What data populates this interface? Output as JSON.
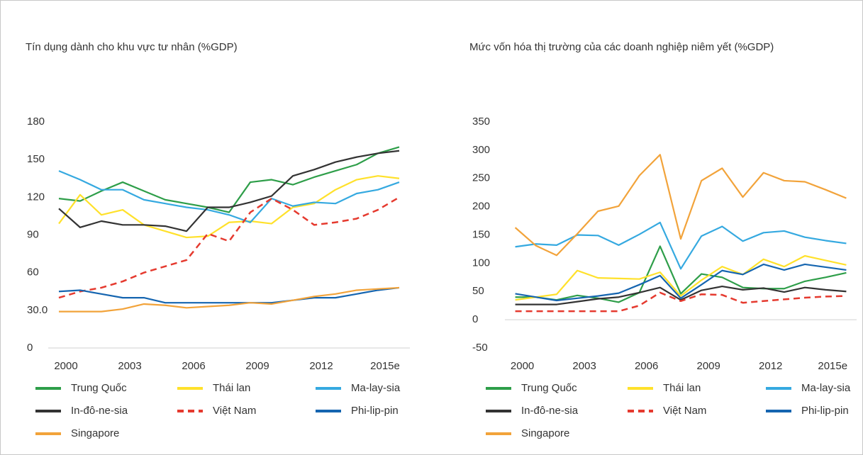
{
  "chart_data": [
    {
      "type": "line",
      "title": "Tín dụng dành cho khu vực tư nhân (%GDP)",
      "legend": "bottom",
      "grid": false,
      "categories": [
        "2000",
        null,
        null,
        "2003",
        null,
        null,
        "2006",
        null,
        null,
        "2009",
        null,
        null,
        "2012",
        null,
        null,
        "2015e",
        null
      ],
      "ylim": [
        0,
        180
      ],
      "yticks": [
        0,
        {
          "value": 30,
          "label": "30.0"
        },
        60,
        90,
        120,
        150,
        180
      ],
      "series": [
        {
          "name": "Trung Quốc",
          "color": "#2e9e49",
          "values": [
            119,
            117,
            125,
            132,
            125,
            118,
            115,
            112,
            108,
            132,
            134,
            130,
            136,
            141,
            146,
            155,
            160
          ]
        },
        {
          "name": "Thái lan",
          "color": "#ffe12b",
          "values": [
            99,
            122,
            106,
            110,
            98,
            93,
            88,
            89,
            100,
            101,
            99,
            112,
            115,
            126,
            134,
            137,
            135
          ]
        },
        {
          "name": "Ma-lay-sia",
          "color": "#35a9e0",
          "values": [
            141,
            134,
            126,
            126,
            118,
            115,
            112,
            110,
            106,
            100,
            119,
            113,
            116,
            115,
            123,
            126,
            132
          ]
        },
        {
          "name": "In-đô-ne-sia",
          "color": "#333333",
          "values": [
            111,
            96,
            101,
            98,
            98,
            97,
            93,
            112,
            112,
            116,
            121,
            137,
            142,
            148,
            152,
            155,
            157
          ]
        },
        {
          "name": "Việt Nam",
          "color": "#e53a2f",
          "dashed": true,
          "values": [
            40,
            45,
            48,
            53,
            60,
            65,
            70,
            91,
            85,
            108,
            119,
            110,
            98,
            100,
            103,
            110,
            120
          ]
        },
        {
          "name": "Phi-lip-pin",
          "color": "#1565b0",
          "values": [
            45,
            46,
            43,
            40,
            40,
            36,
            36,
            36,
            36,
            36,
            36,
            38,
            40,
            40,
            43,
            46,
            48
          ]
        },
        {
          "name": "Singapore",
          "color": "#f2a33a",
          "values": [
            29,
            29,
            29,
            31,
            35,
            34,
            32,
            33,
            34,
            36,
            35,
            38,
            41,
            43,
            46,
            47,
            48
          ]
        }
      ]
    },
    {
      "type": "line",
      "title": "Mức vốn hóa thị trường của các doanh nghiệp niêm yết (%GDP)",
      "legend": "bottom",
      "grid": false,
      "categories": [
        "2000",
        null,
        null,
        "2003",
        null,
        null,
        "2006",
        null,
        null,
        "2009",
        null,
        null,
        "2012",
        null,
        null,
        "2015e",
        null
      ],
      "ylim": [
        -50,
        350
      ],
      "yticks": [
        -50,
        0,
        50,
        100,
        150,
        200,
        250,
        300,
        350
      ],
      "series": [
        {
          "name": "Trung Quốc",
          "color": "#2e9e49",
          "values": [
            40,
            40,
            35,
            43,
            38,
            31,
            48,
            130,
            46,
            81,
            75,
            57,
            55,
            55,
            68,
            75,
            83
          ]
        },
        {
          "name": "Thái lan",
          "color": "#ffe12b",
          "values": [
            35,
            40,
            45,
            87,
            74,
            73,
            72,
            84,
            42,
            70,
            94,
            80,
            107,
            94,
            113,
            105,
            97
          ]
        },
        {
          "name": "Ma-lay-sia",
          "color": "#35a9e0",
          "values": [
            129,
            134,
            132,
            150,
            149,
            132,
            151,
            172,
            90,
            148,
            165,
            139,
            154,
            157,
            146,
            140,
            135
          ]
        },
        {
          "name": "In-đô-ne-sia",
          "color": "#333333",
          "values": [
            27,
            27,
            27,
            32,
            37,
            40,
            48,
            57,
            35,
            52,
            59,
            53,
            56,
            49,
            57,
            53,
            50
          ]
        },
        {
          "name": "Việt Nam",
          "color": "#e53a2f",
          "dashed": true,
          "values": [
            15,
            15,
            15,
            15,
            15,
            15,
            25,
            48,
            33,
            45,
            44,
            30,
            33,
            36,
            39,
            41,
            42
          ]
        },
        {
          "name": "Phi-lip-pin",
          "color": "#1565b0",
          "values": [
            46,
            40,
            34,
            38,
            42,
            47,
            62,
            78,
            38,
            62,
            87,
            80,
            98,
            88,
            98,
            93,
            88
          ]
        },
        {
          "name": "Singapore",
          "color": "#f2a33a",
          "values": [
            163,
            131,
            114,
            152,
            192,
            201,
            255,
            292,
            143,
            246,
            268,
            217,
            260,
            246,
            244,
            230,
            215
          ]
        }
      ]
    }
  ]
}
